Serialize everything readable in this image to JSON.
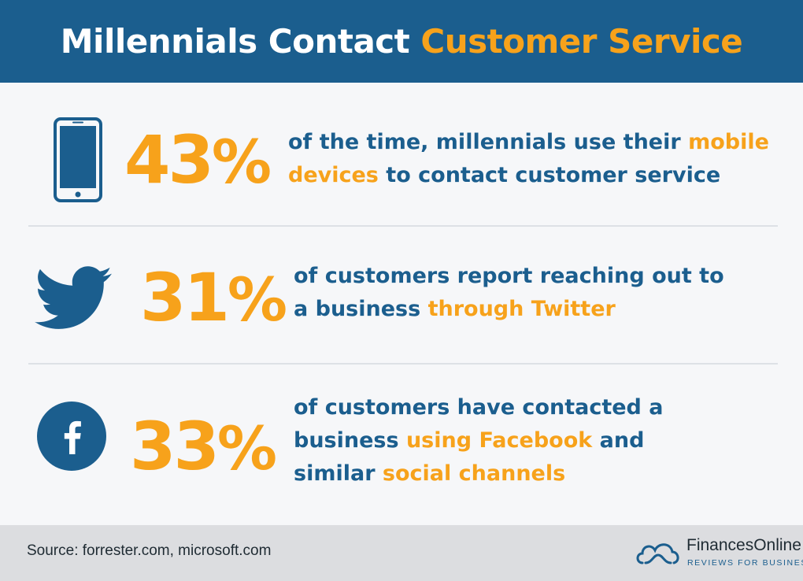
{
  "header": {
    "title_main": "Millennials Contact",
    "title_accent": "Customer Service"
  },
  "stats": [
    {
      "icon": "smartphone-icon",
      "value": "43",
      "symbol": "%",
      "line1_pre": "of the time, millennials use their ",
      "line1_hl": "mobile",
      "line2_hl": "devices",
      "line2_post": " to contact customer service"
    },
    {
      "icon": "twitter-bird-icon",
      "value": "31",
      "symbol": "%",
      "line1_pre": "of customers report reaching out to",
      "line2_pre": "a business ",
      "line2_hl": "through Twitter"
    },
    {
      "icon": "facebook-icon",
      "value": "33",
      "symbol": "%",
      "line1_pre": "of customers have contacted a",
      "line2_pre": "business ",
      "line2_hl": "using Facebook",
      "line2_post": " and",
      "line3_pre": "similar ",
      "line3_hl": "social channels"
    }
  ],
  "footer": {
    "source": "Source: forrester.com, microsoft.com",
    "brand_name": "FinancesOnline",
    "brand_tagline": "REVIEWS FOR BUSINESS"
  },
  "colors": {
    "primary_blue": "#1b5e8e",
    "accent_orange": "#f7a21b",
    "background": "#f6f7f9",
    "footer_bg": "#dcdde0"
  }
}
